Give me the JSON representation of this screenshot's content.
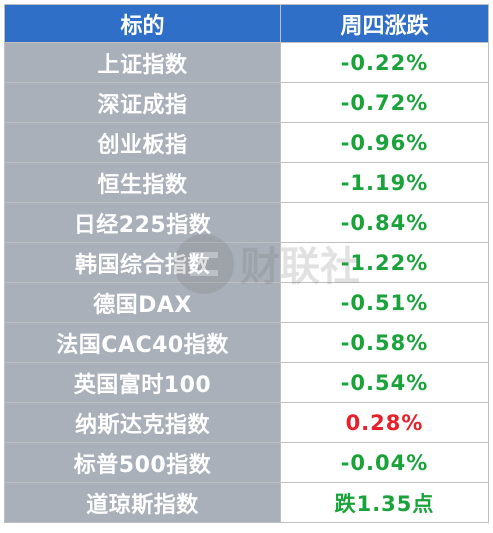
{
  "table": {
    "headers": [
      "标的",
      "周四涨跌"
    ],
    "rows": [
      {
        "name": "上证指数",
        "change": "-0.22%",
        "color": "#1aa33b"
      },
      {
        "name": "深证成指",
        "change": "-0.72%",
        "color": "#1aa33b"
      },
      {
        "name": "创业板指",
        "change": "-0.96%",
        "color": "#1aa33b"
      },
      {
        "name": "恒生指数",
        "change": "-1.19%",
        "color": "#1aa33b"
      },
      {
        "name": "日经225指数",
        "change": "-0.84%",
        "color": "#1aa33b"
      },
      {
        "name": "韩国综合指数",
        "change": "-1.22%",
        "color": "#1aa33b"
      },
      {
        "name": "德国DAX",
        "change": "-0.51%",
        "color": "#1aa33b"
      },
      {
        "name": "法国CAC40指数",
        "change": "-0.58%",
        "color": "#1aa33b"
      },
      {
        "name": "英国富时100",
        "change": "-0.54%",
        "color": "#1aa33b"
      },
      {
        "name": "纳斯达克指数",
        "change": "0.28%",
        "color": "#e8202a"
      },
      {
        "name": "标普500指数",
        "change": "-0.04%",
        "color": "#1aa33b"
      },
      {
        "name": "道琼斯指数",
        "change": "跌1.35点",
        "color": "#1aa33b"
      }
    ]
  },
  "watermark": {
    "text": "财联社"
  },
  "colors": {
    "header_bg": "#2f6fc8",
    "name_bg": "#a9b0b9",
    "down": "#1aa33b",
    "up": "#e8202a"
  }
}
